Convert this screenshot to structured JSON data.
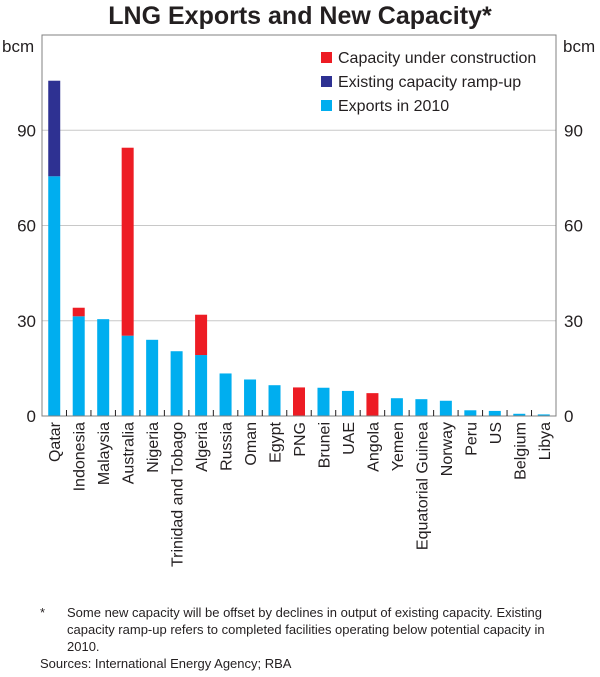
{
  "chart_data": {
    "type": "bar",
    "stacked": true,
    "title": "LNG Exports and New Capacity*",
    "xlabel": "",
    "ylabel": "bcm",
    "ylabel_right": "bcm",
    "ylim": [
      0,
      120
    ],
    "yticks": [
      0,
      30,
      60,
      90
    ],
    "grid": true,
    "legend_position": "top-right",
    "categories": [
      "Qatar",
      "Indonesia",
      "Malaysia",
      "Australia",
      "Nigeria",
      "Trinidad and Tobago",
      "Algeria",
      "Russia",
      "Oman",
      "Egypt",
      "PNG",
      "Brunei",
      "UAE",
      "Angola",
      "Yemen",
      "Equatorial Guinea",
      "Norway",
      "Peru",
      "US",
      "Belgium",
      "Libya"
    ],
    "series": [
      {
        "name": "Exports in 2010",
        "color": "#00aeef",
        "values": [
          75.5,
          31.4,
          30.5,
          25.3,
          24.0,
          20.4,
          19.2,
          13.4,
          11.5,
          9.7,
          0,
          8.9,
          7.9,
          0,
          5.6,
          5.3,
          4.8,
          1.8,
          1.6,
          0.7,
          0.5
        ]
      },
      {
        "name": "Existing capacity ramp-up",
        "color": "#2e3192",
        "values": [
          30.1,
          0,
          0,
          0,
          0,
          0,
          0,
          0,
          0,
          0,
          0,
          0,
          0,
          0,
          0,
          0,
          0,
          0,
          0,
          0,
          0
        ]
      },
      {
        "name": "Capacity under construction",
        "color": "#ed1c24",
        "values": [
          0,
          2.7,
          0,
          59.2,
          0,
          0,
          12.7,
          0,
          0,
          0,
          9.0,
          0,
          0,
          7.2,
          0,
          0,
          0,
          0,
          0,
          0,
          0
        ]
      }
    ],
    "legend": [
      {
        "name": "Capacity under construction",
        "color": "#ed1c24"
      },
      {
        "name": "Existing capacity ramp-up",
        "color": "#2e3192"
      },
      {
        "name": "Exports in 2010",
        "color": "#00aeef"
      }
    ]
  },
  "notes": {
    "footnote_mark": "*",
    "footnote": "Some new capacity will be offset by declines in output of existing capacity. Existing capacity ramp-up refers to completed facilities operating below potential capacity in 2010.",
    "sources": "Sources: International Energy Agency; RBA"
  }
}
